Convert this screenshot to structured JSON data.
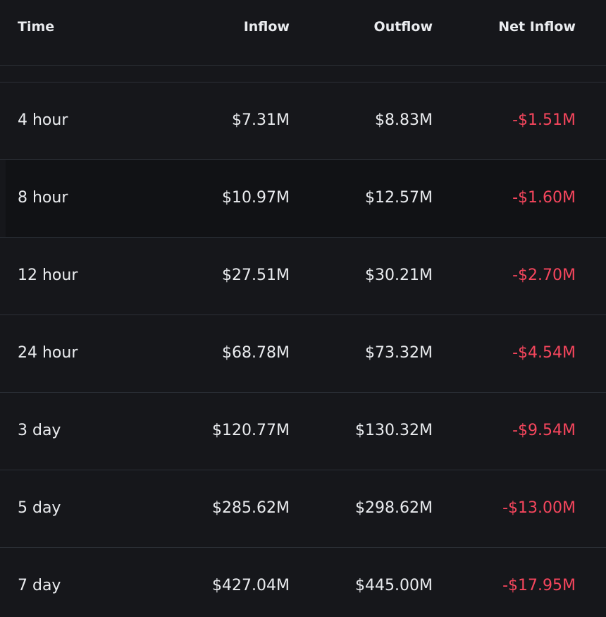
{
  "table": {
    "header": [
      "Time",
      "Inflow",
      "Outflow",
      "Net Inflow"
    ],
    "rows": [
      [
        "4 hour",
        "$7.31M",
        "$8.83M",
        "-$1.51M"
      ],
      [
        "8 hour",
        "$10.97M",
        "$12.57M",
        "-$1.60M"
      ],
      [
        "12 hour",
        "$27.51M",
        "$30.21M",
        "-$2.70M"
      ],
      [
        "24 hour",
        "$68.78M",
        "$73.32M",
        "-$4.54M"
      ],
      [
        "3 day",
        "$120.77M",
        "$130.32M",
        "-$9.54M"
      ],
      [
        "5 day",
        "$285.62M",
        "$298.62M",
        "-$13.00M"
      ],
      [
        "7 day",
        "$427.04M",
        "$445.00M",
        "-$17.95M"
      ]
    ]
  }
}
